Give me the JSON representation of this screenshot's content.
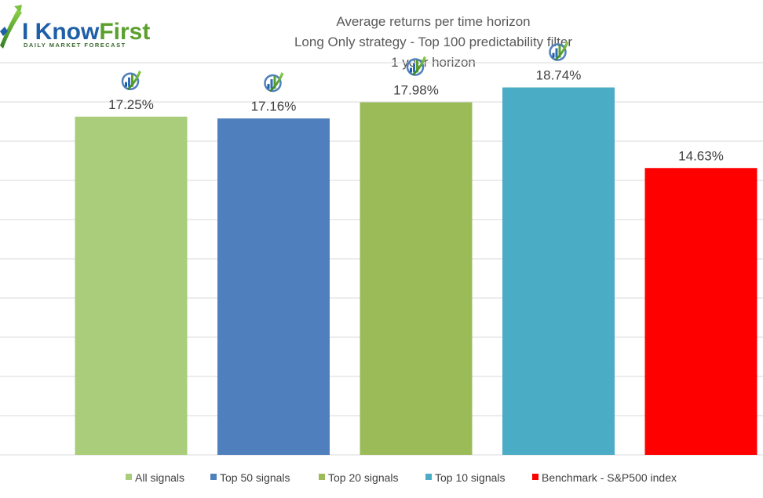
{
  "logo": {
    "text_main_1": "I Know",
    "text_main_2": "First",
    "text_sub": "DAILY MARKET FORECAST",
    "colors": {
      "blue": "#1f5fa8",
      "green": "#5aa02c",
      "sub": "#3a6a30"
    }
  },
  "chart_data": {
    "type": "bar",
    "title": [
      "Average returns per time horizon",
      "Long Only strategy - Top 100 predictability filter",
      "1 year horizon"
    ],
    "categories": [
      "All signals",
      "Top 50 signals",
      "Top 20 signals",
      "Top 10 signals",
      "Benchmark - S&P500 index"
    ],
    "series": [
      {
        "name": "All signals",
        "value": 17.25,
        "label": "17.25%",
        "color": "#a9cd7a",
        "icon": "iknowfirst-logo-icon"
      },
      {
        "name": "Top 50 signals",
        "value": 17.16,
        "label": "17.16%",
        "color": "#4f80bd",
        "icon": "iknowfirst-logo-icon"
      },
      {
        "name": "Top 20 signals",
        "value": 17.98,
        "label": "17.98%",
        "color": "#9bbb59",
        "icon": "iknowfirst-logo-icon"
      },
      {
        "name": "Top 10 signals",
        "value": 18.74,
        "label": "18.74%",
        "color": "#4bacc6",
        "icon": "iknowfirst-logo-icon"
      },
      {
        "name": "Benchmark - S&P500 index",
        "value": 14.63,
        "label": "14.63%",
        "color": "#ff0000",
        "icon": null
      }
    ],
    "ylim": [
      0,
      20
    ],
    "grid": true,
    "y_tick_labels_visible": false,
    "legend_position": "bottom",
    "gridline_color": "#d9d9d9"
  }
}
